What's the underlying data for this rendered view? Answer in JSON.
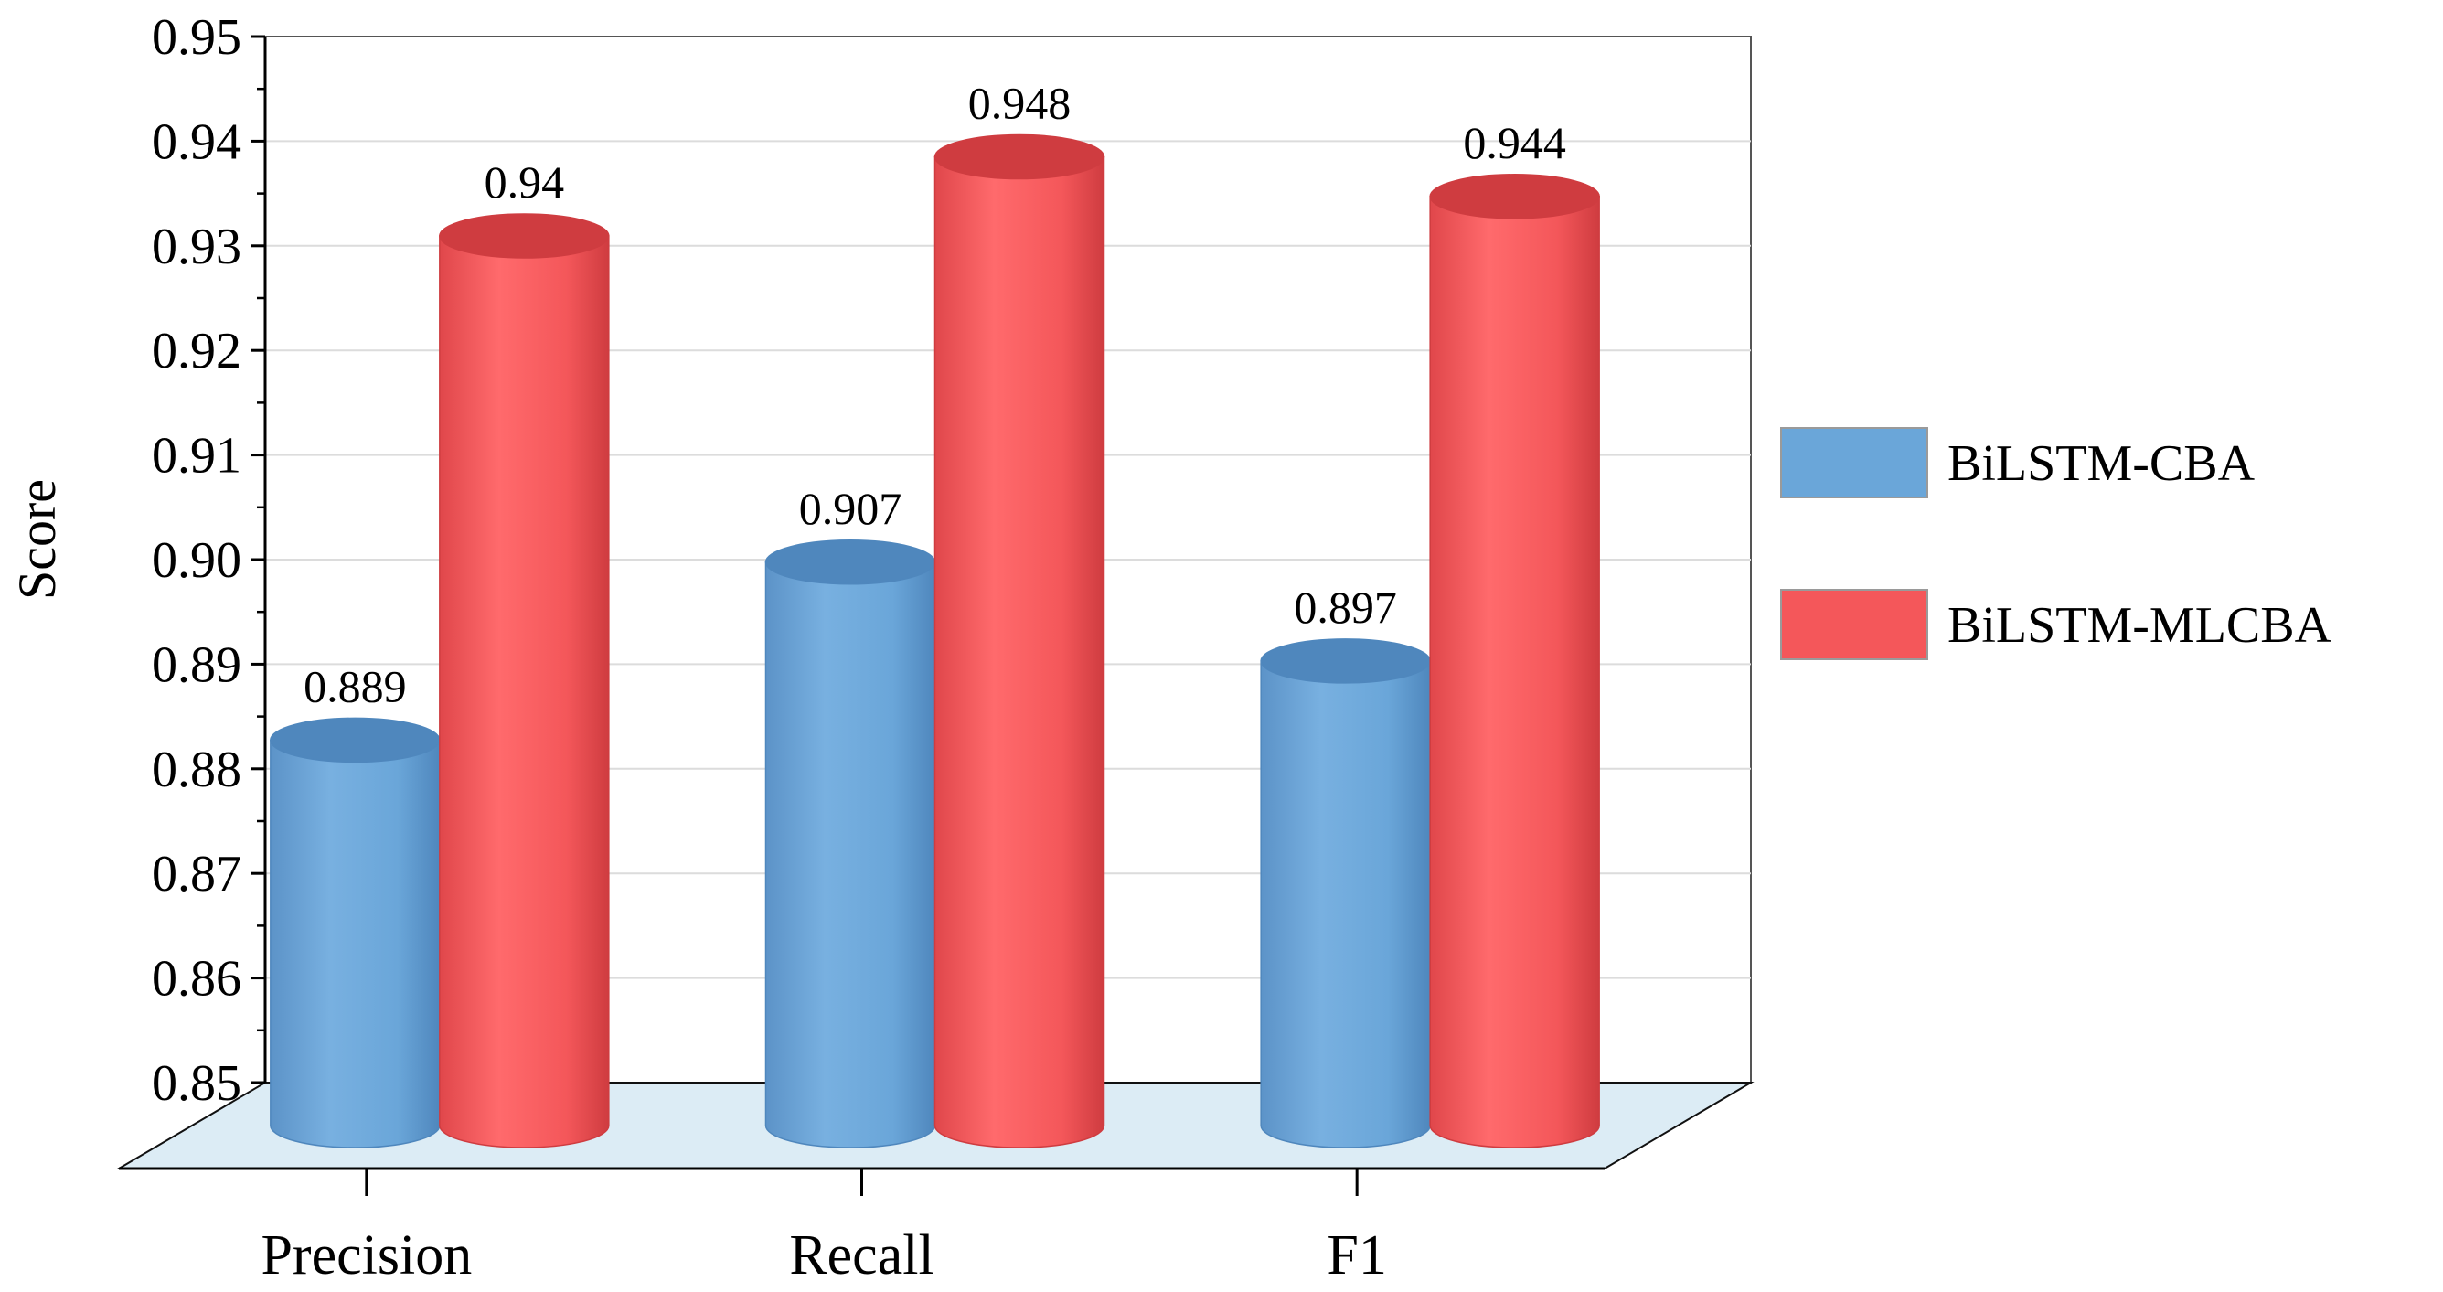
{
  "chart_data": {
    "type": "bar",
    "style": "3d-cylinder",
    "categories": [
      "Precision",
      "Recall",
      "F1"
    ],
    "series": [
      {
        "name": "BiLSTM-CBA",
        "values": [
          0.889,
          0.907,
          0.897
        ],
        "color": "#6aa6d9",
        "shade": "#4f87bd"
      },
      {
        "name": "BiLSTM-MLCBA",
        "values": [
          0.94,
          0.948,
          0.944
        ],
        "color": "#f4575a",
        "shade": "#cf3c40"
      }
    ],
    "data_labels": [
      [
        "0.889",
        "0.907",
        "0.897"
      ],
      [
        "0.94",
        "0.948",
        "0.944"
      ]
    ],
    "ylabel": "Score",
    "xlabel": "",
    "ylim": [
      0.85,
      0.95
    ],
    "yticks": [
      "0.85",
      "0.86",
      "0.87",
      "0.88",
      "0.89",
      "0.90",
      "0.91",
      "0.92",
      "0.93",
      "0.94",
      "0.95"
    ],
    "grid": true,
    "legend_position": "right",
    "floor_color": "#dcecf5"
  }
}
